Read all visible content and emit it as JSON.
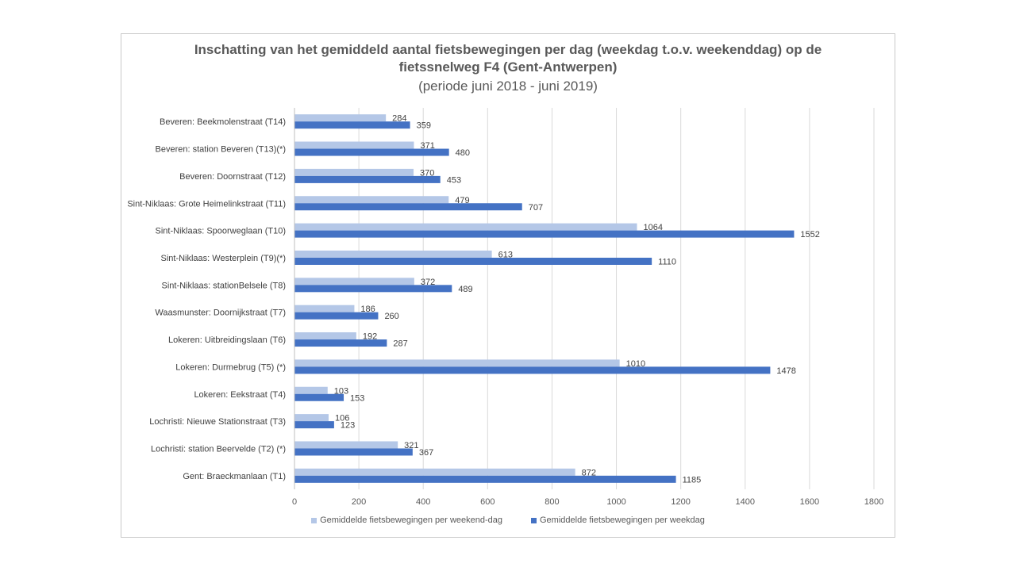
{
  "chart_data": {
    "type": "bar",
    "orientation": "horizontal",
    "title_line1": "Inschatting van het gemiddeld aantal fietsbewegingen per dag (weekdag t.o.v. weekenddag) op de",
    "title_line2": "fietssnelweg F4 (Gent-Antwerpen)",
    "subtitle": "(periode juni 2018 - juni 2019)",
    "xlim": [
      0,
      1800
    ],
    "xticks": [
      0,
      200,
      400,
      600,
      800,
      1000,
      1200,
      1400,
      1600,
      1800
    ],
    "grid": true,
    "legend_position": "bottom",
    "categories": [
      "Beveren: Beekmolenstraat (T14)",
      "Beveren: station Beveren (T13)(*)",
      "Beveren: Doornstraat (T12)",
      "Sint-Niklaas: Grote Heimelinkstraat (T11)",
      "Sint-Niklaas: Spoorweglaan (T10)",
      "Sint-Niklaas: Westerplein (T9)(*)",
      "Sint-Niklaas: stationBelsele (T8)",
      "Waasmunster: Doornijkstraat (T7)",
      "Lokeren: Uitbreidingslaan (T6)",
      "Lokeren: Durmebrug (T5) (*)",
      "Lokeren: Eekstraat (T4)",
      "Lochristi: Nieuwe Stationstraat (T3)",
      "Lochristi: station Beervelde (T2) (*)",
      "Gent: Braeckmanlaan (T1)"
    ],
    "series": [
      {
        "name": "Gemiddelde fietsbewegingen per weekend-dag",
        "color": "#b4c7e7",
        "values": [
          284,
          371,
          370,
          479,
          1064,
          613,
          372,
          186,
          192,
          1010,
          103,
          106,
          321,
          872
        ]
      },
      {
        "name": "Gemiddelde fietsbewegingen per weekdag",
        "color": "#4472c4",
        "values": [
          359,
          480,
          453,
          707,
          1552,
          1110,
          489,
          260,
          287,
          1478,
          153,
          123,
          367,
          1185
        ]
      }
    ]
  }
}
